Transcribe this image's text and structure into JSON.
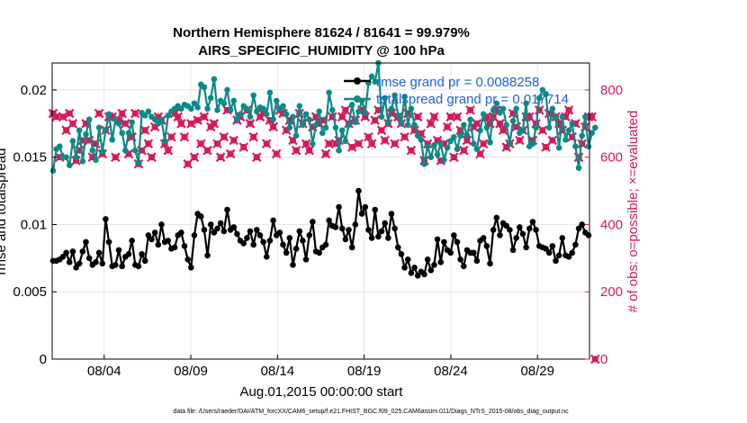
{
  "chart_data": {
    "type": "line",
    "title": "Northern Hemisphere 81624 / 81641 = 99.979%",
    "subtitle": "AIRS_SPECIFIC_HUMIDITY @ 100 hPa",
    "xlabel": "Aug.01,2015 00:00:00 start",
    "ylabel": "rmse and totalspread",
    "y2label": "# of obs: o=possible; ×=evaluated",
    "footnote": "data file: /Users/raeder/DAI/ATM_forcXX/CAM6_setup/f.e21.FHIST_BGC.f09_025.CAM6assim.011/Diags_NTrS_2015-08/obs_diag_output.nc",
    "xlim": [
      1,
      32
    ],
    "ylim": [
      0,
      0.022
    ],
    "y2lim": [
      0,
      880
    ],
    "x_ticks": [
      {
        "x": 4,
        "label": "08/04"
      },
      {
        "x": 9,
        "label": "08/09"
      },
      {
        "x": 14,
        "label": "08/14"
      },
      {
        "x": 19,
        "label": "08/19"
      },
      {
        "x": 24,
        "label": "08/24"
      },
      {
        "x": 29,
        "label": "08/29"
      }
    ],
    "y_ticks": [
      {
        "v": 0,
        "label": "0"
      },
      {
        "v": 0.005,
        "label": "0.005"
      },
      {
        "v": 0.01,
        "label": "0.01"
      },
      {
        "v": 0.015,
        "label": "0.015"
      },
      {
        "v": 0.02,
        "label": "0.02"
      }
    ],
    "y2_ticks": [
      {
        "v": 0,
        "label": "0"
      },
      {
        "v": 200,
        "label": "200"
      },
      {
        "v": 400,
        "label": "400"
      },
      {
        "v": 600,
        "label": "600"
      },
      {
        "v": 800,
        "label": "800"
      }
    ],
    "legend": [
      {
        "name": "rmse grand pr = 0.0088258",
        "color": "#000000"
      },
      {
        "name": "totalspread grand pr = 0.017714",
        "color": "#0a8a86"
      }
    ],
    "colors": {
      "rmse": "#000000",
      "spread": "#0a8a86",
      "obs": "#d6195a",
      "legend_text": "#1f5fe0",
      "grid": "#e6e6e6"
    },
    "series": [
      {
        "name": "rmse",
        "values": [
          0.0073,
          0.0073,
          0.0074,
          0.0076,
          0.0079,
          0.0072,
          0.008,
          0.0068,
          0.0071,
          0.008,
          0.0087,
          0.0075,
          0.007,
          0.0072,
          0.0079,
          0.0071,
          0.0104,
          0.0087,
          0.0069,
          0.007,
          0.0081,
          0.0069,
          0.0076,
          0.0078,
          0.0088,
          0.007,
          0.0069,
          0.0078,
          0.0073,
          0.0092,
          0.0089,
          0.0094,
          0.0085,
          0.01,
          0.0087,
          0.0088,
          0.0082,
          0.0083,
          0.0092,
          0.0094,
          0.0084,
          0.0074,
          0.0068,
          0.0092,
          0.0108,
          0.0106,
          0.0096,
          0.0077,
          0.01,
          0.0094,
          0.0097,
          0.0101,
          0.0095,
          0.0111,
          0.0096,
          0.0098,
          0.0093,
          0.0088,
          0.0086,
          0.009,
          0.0095,
          0.0085,
          0.0096,
          0.0092,
          0.0087,
          0.0076,
          0.0088,
          0.0103,
          0.0092,
          0.0094,
          0.0085,
          0.0079,
          0.009,
          0.007,
          0.0082,
          0.0095,
          0.0088,
          0.0074,
          0.0092,
          0.0102,
          0.008,
          0.0079,
          0.0083,
          0.0085,
          0.0103,
          0.0099,
          0.0098,
          0.0113,
          0.0097,
          0.0089,
          0.0096,
          0.0083,
          0.01,
          0.0125,
          0.0108,
          0.0113,
          0.0096,
          0.009,
          0.0111,
          0.0091,
          0.0095,
          0.0101,
          0.009,
          0.0108,
          0.0097,
          0.0083,
          0.0078,
          0.0068,
          0.0074,
          0.0064,
          0.0068,
          0.0062,
          0.0065,
          0.0063,
          0.0074,
          0.0066,
          0.007,
          0.0089,
          0.0072,
          0.0087,
          0.0081,
          0.0079,
          0.0092,
          0.0087,
          0.0074,
          0.0069,
          0.0081,
          0.0079,
          0.0079,
          0.0073,
          0.0088,
          0.009,
          0.0084,
          0.0071,
          0.0096,
          0.0105,
          0.0092,
          0.0101,
          0.0099,
          0.0096,
          0.0081,
          0.009,
          0.0098,
          0.0093,
          0.0083,
          0.0097,
          0.0102,
          0.0096,
          0.0084,
          0.0083,
          0.0082,
          0.0079,
          0.0084,
          0.0073,
          0.0077,
          0.009,
          0.0077,
          0.0076,
          0.0079,
          0.0085,
          0.0097,
          0.01,
          0.0094,
          0.0092
        ]
      },
      {
        "name": "totalspread",
        "values": [
          0.014,
          0.0156,
          0.0158,
          0.015,
          0.015,
          0.0144,
          0.0162,
          0.015,
          0.017,
          0.0147,
          0.0167,
          0.0178,
          0.0155,
          0.0148,
          0.0172,
          0.0154,
          0.017,
          0.0182,
          0.0163,
          0.0178,
          0.0175,
          0.0168,
          0.0155,
          0.0168,
          0.0176,
          0.0155,
          0.0146,
          0.0183,
          0.0181,
          0.0184,
          0.018,
          0.0178,
          0.0175,
          0.0178,
          0.0162,
          0.0181,
          0.0184,
          0.0186,
          0.0188,
          0.0186,
          0.0189,
          0.0188,
          0.0186,
          0.019,
          0.0187,
          0.0204,
          0.0202,
          0.0186,
          0.0194,
          0.0208,
          0.0185,
          0.0192,
          0.019,
          0.02,
          0.0185,
          0.0192,
          0.0178,
          0.0182,
          0.0188,
          0.0186,
          0.018,
          0.0196,
          0.0184,
          0.0187,
          0.0186,
          0.0182,
          0.0198,
          0.0178,
          0.0192,
          0.0186,
          0.0188,
          0.0182,
          0.0172,
          0.018,
          0.0166,
          0.0188,
          0.0174,
          0.0182,
          0.0178,
          0.016,
          0.0174,
          0.0184,
          0.0168,
          0.0172,
          0.0198,
          0.0185,
          0.0172,
          0.0155,
          0.017,
          0.0162,
          0.0174,
          0.0189,
          0.0176,
          0.0184,
          0.0192,
          0.0183,
          0.0205,
          0.021,
          0.0206,
          0.022,
          0.018,
          0.0194,
          0.0176,
          0.0186,
          0.0196,
          0.0181,
          0.0175,
          0.0195,
          0.0174,
          0.0186,
          0.0174,
          0.0166,
          0.0163,
          0.0145,
          0.0158,
          0.015,
          0.0159,
          0.0152,
          0.016,
          0.0148,
          0.0157,
          0.0162,
          0.0165,
          0.0156,
          0.0166,
          0.0174,
          0.0166,
          0.0178,
          0.016,
          0.0156,
          0.017,
          0.0182,
          0.0172,
          0.0161,
          0.0185,
          0.019,
          0.0183,
          0.0186,
          0.0174,
          0.016,
          0.0177,
          0.0186,
          0.0168,
          0.017,
          0.019,
          0.0158,
          0.016,
          0.0172,
          0.0194,
          0.02,
          0.0197,
          0.0172,
          0.0186,
          0.0179,
          0.0157,
          0.018,
          0.0163,
          0.017,
          0.0175,
          0.0158,
          0.0142,
          0.0166,
          0.018,
          0.0158,
          0.0168,
          0.0172
        ]
      },
      {
        "name": "obs_possible_and_evaluated",
        "values": [
          730,
          720,
          600,
          720,
          680,
          730,
          700,
          590,
          620,
          650,
          700,
          650,
          600,
          640,
          730,
          610,
          680,
          720,
          720,
          600,
          710,
          730,
          700,
          610,
          660,
          730,
          580,
          620,
          680,
          640,
          600,
          690,
          720,
          710,
          640,
          620,
          660,
          730,
          720,
          700,
          660,
          580,
          700,
          600,
          710,
          640,
          720,
          620,
          690,
          700,
          640,
          600,
          660,
          740,
          610,
          650,
          710,
          720,
          630,
          740,
          700,
          660,
          600,
          720,
          730,
          640,
          710,
          690,
          610,
          740,
          730,
          680,
          710,
          650,
          620,
          730,
          700,
          640,
          620,
          690,
          720,
          700,
          710,
          610,
          640,
          720,
          640,
          650,
          720,
          740,
          700,
          630,
          710,
          640,
          740,
          720,
          660,
          640,
          710,
          740,
          680,
          650,
          700,
          730,
          640,
          720,
          700,
          660,
          730,
          620,
          680,
          720,
          670,
          590,
          640,
          700,
          720,
          650,
          590,
          640,
          690,
          720,
          600,
          720,
          680,
          620,
          650,
          740,
          690,
          700,
          610,
          640,
          720,
          700,
          720,
          740,
          700,
          680,
          630,
          640,
          730,
          690,
          650,
          680,
          720,
          720,
          650,
          700,
          740,
          680,
          630,
          730,
          650,
          720,
          700,
          680,
          720,
          740,
          660,
          700,
          600,
          640,
          690,
          720,
          720,
          0
        ]
      }
    ]
  }
}
